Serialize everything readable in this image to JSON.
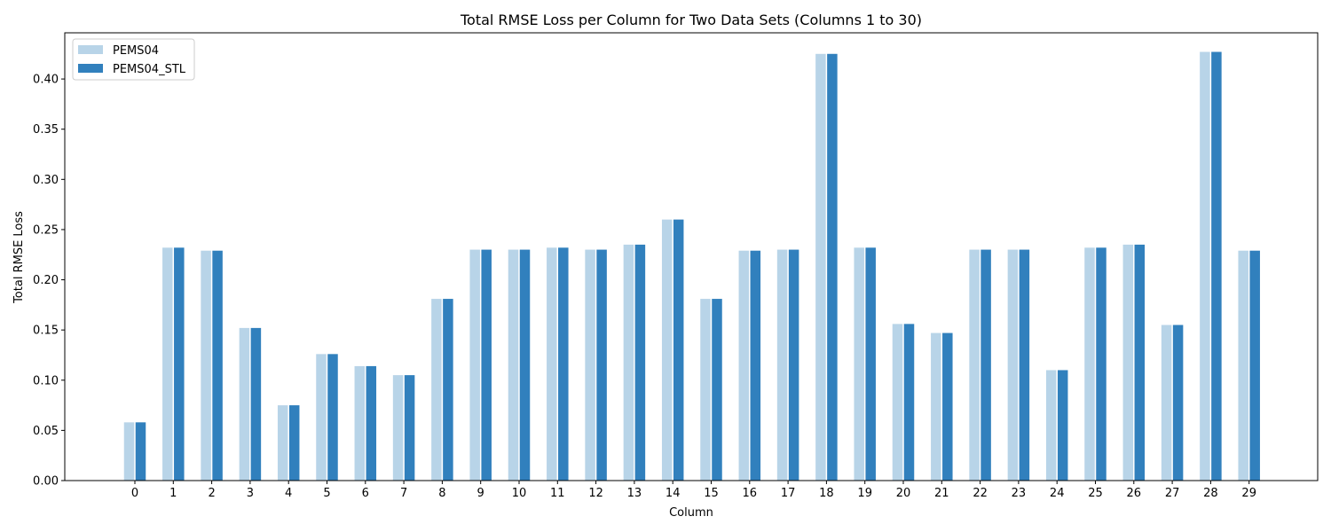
{
  "chart_data": {
    "type": "bar",
    "title": "Total RMSE Loss per Column for Two Data Sets (Columns 1 to 30)",
    "xlabel": "Column",
    "ylabel": "Total RMSE Loss",
    "categories": [
      "0",
      "1",
      "2",
      "3",
      "4",
      "5",
      "6",
      "7",
      "8",
      "9",
      "10",
      "11",
      "12",
      "13",
      "14",
      "15",
      "16",
      "17",
      "18",
      "19",
      "20",
      "21",
      "22",
      "23",
      "24",
      "25",
      "26",
      "27",
      "28",
      "29"
    ],
    "series": [
      {
        "name": "PEMS04",
        "color": "#b8d4e8",
        "values": [
          0.058,
          0.232,
          0.229,
          0.152,
          0.075,
          0.126,
          0.114,
          0.105,
          0.181,
          0.23,
          0.23,
          0.232,
          0.23,
          0.235,
          0.26,
          0.181,
          0.229,
          0.23,
          0.425,
          0.232,
          0.156,
          0.147,
          0.23,
          0.23,
          0.11,
          0.232,
          0.235,
          0.155,
          0.427,
          0.229
        ]
      },
      {
        "name": "PEMS04_STL",
        "color": "#3180bd",
        "values": [
          0.058,
          0.232,
          0.229,
          0.152,
          0.075,
          0.126,
          0.114,
          0.105,
          0.181,
          0.23,
          0.23,
          0.232,
          0.23,
          0.235,
          0.26,
          0.181,
          0.229,
          0.23,
          0.425,
          0.232,
          0.156,
          0.147,
          0.23,
          0.23,
          0.11,
          0.232,
          0.235,
          0.155,
          0.427,
          0.229
        ]
      }
    ],
    "yticks": [
      "0.00",
      "0.05",
      "0.10",
      "0.15",
      "0.20",
      "0.25",
      "0.30",
      "0.35",
      "0.40"
    ],
    "ylim": [
      0,
      0.446
    ],
    "grid": false,
    "legend_position": "top-left"
  }
}
